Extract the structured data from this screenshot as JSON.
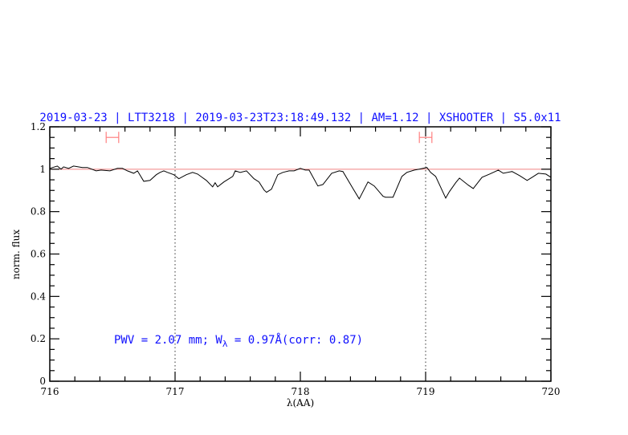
{
  "chart_data": {
    "type": "line",
    "title_parts": [
      "2019-03-23",
      "LTT3218",
      "2019-03-23T23:18:49.132",
      "AM=1.12",
      "XSHOOTER",
      "S5.0x11"
    ],
    "title_separator": "|",
    "xlabel": "λ(AA)",
    "ylabel": "norm. flux",
    "xlim": [
      716,
      720
    ],
    "ylim": [
      0,
      1.2
    ],
    "x_ticks": [
      716,
      717,
      718,
      719,
      720
    ],
    "x_tick_labels": [
      "716",
      "717",
      "718",
      "719",
      "720"
    ],
    "y_ticks": [
      0,
      0.2,
      0.4,
      0.6,
      0.8,
      1,
      1.2
    ],
    "y_tick_labels": [
      "0",
      "0.2",
      "0.4",
      "0.6",
      "0.8",
      "1",
      "1.2"
    ],
    "x_minor_step": 0.2,
    "y_minor_step": 0.05,
    "reference_line": {
      "y": 1,
      "color": "#f08080"
    },
    "vertical_markers": [
      717,
      719
    ],
    "error_bars": [
      {
        "x_min": 716.45,
        "x_max": 716.55,
        "y": 1.15
      },
      {
        "x_min": 718.95,
        "x_max": 719.05,
        "y": 1.15
      }
    ],
    "error_bar_color": "#ff8080",
    "annotation": {
      "prefix": "PWV = 2.07 mm; W",
      "subscript": "λ",
      "suffix": " = 0.97Å(corr: 0.87)",
      "color": "#1010ff"
    },
    "series": [
      {
        "color": "#000000",
        "x": [
          716.0,
          716.06,
          716.09,
          716.11,
          716.15,
          716.19,
          716.26,
          716.3,
          716.37,
          716.41,
          716.48,
          716.54,
          716.58,
          716.62,
          716.67,
          716.7,
          716.75,
          716.8,
          716.85,
          716.88,
          716.91,
          716.94,
          716.99,
          717.03,
          717.09,
          717.14,
          717.18,
          717.25,
          717.3,
          717.32,
          717.34,
          717.39,
          717.46,
          717.48,
          717.52,
          717.57,
          717.63,
          717.67,
          717.71,
          717.73,
          717.77,
          717.82,
          717.86,
          717.91,
          717.95,
          718.0,
          718.04,
          718.07,
          718.14,
          718.18,
          718.25,
          718.31,
          718.34,
          718.42,
          718.47,
          718.54,
          718.59,
          718.66,
          718.68,
          718.74,
          718.81,
          718.85,
          718.91,
          718.95,
          719.01,
          719.04,
          719.08,
          719.16,
          719.19,
          719.24,
          719.27,
          719.34,
          719.38,
          719.45,
          719.51,
          719.58,
          719.62,
          719.69,
          719.75,
          719.81,
          719.85,
          719.9,
          719.96,
          720.0
        ],
        "y": [
          1.004,
          1.015,
          1.0,
          1.011,
          1.004,
          1.015,
          1.008,
          1.008,
          0.992,
          0.996,
          0.992,
          1.004,
          1.004,
          0.992,
          0.981,
          0.992,
          0.943,
          0.947,
          0.974,
          0.985,
          0.992,
          0.985,
          0.974,
          0.955,
          0.974,
          0.985,
          0.977,
          0.947,
          0.917,
          0.936,
          0.917,
          0.94,
          0.966,
          0.992,
          0.985,
          0.992,
          0.955,
          0.94,
          0.902,
          0.891,
          0.906,
          0.974,
          0.985,
          0.992,
          0.992,
          1.004,
          0.996,
          0.996,
          0.921,
          0.928,
          0.981,
          0.992,
          0.989,
          0.909,
          0.86,
          0.94,
          0.921,
          0.872,
          0.868,
          0.868,
          0.966,
          0.985,
          0.996,
          1.0,
          1.008,
          0.985,
          0.966,
          0.864,
          0.894,
          0.936,
          0.958,
          0.925,
          0.909,
          0.962,
          0.977,
          0.996,
          0.981,
          0.989,
          0.97,
          0.947,
          0.962,
          0.981,
          0.977,
          0.962
        ]
      }
    ]
  }
}
